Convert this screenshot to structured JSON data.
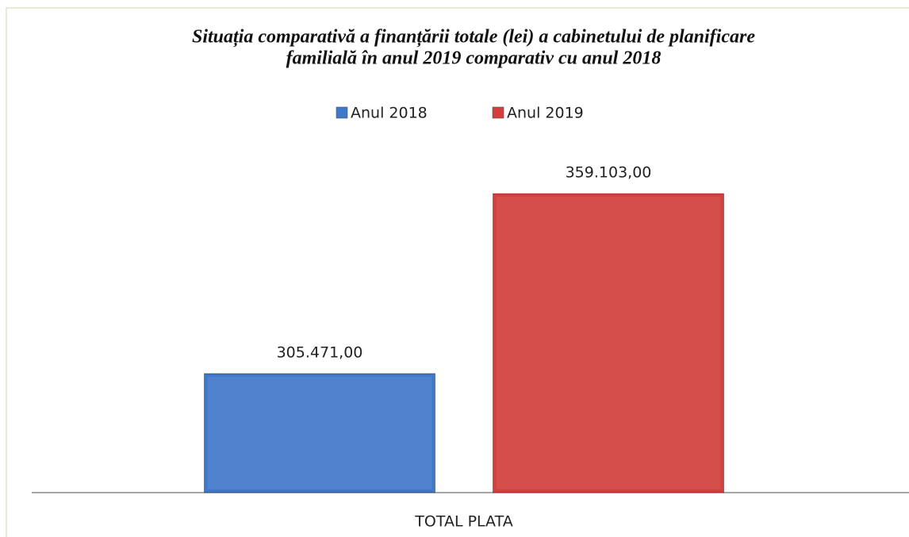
{
  "chart_data": {
    "type": "bar",
    "title": [
      "Situația comparativă a finanțării totale (lei) a cabinetului de planificare",
      "familială în anul 2019 comparativ cu anul 2018"
    ],
    "categories": [
      "TOTAL PLATA"
    ],
    "series": [
      {
        "name": "Anul 2018",
        "color": "#3f78c8",
        "values": [
          305471
        ],
        "value_labels": [
          "305.471,00"
        ]
      },
      {
        "name": "Anul 2019",
        "color": "#d23f3d",
        "values": [
          359103
        ],
        "value_labels": [
          "359.103,00"
        ]
      }
    ],
    "ylim": [
      270000,
      370000
    ],
    "legend": "top"
  }
}
